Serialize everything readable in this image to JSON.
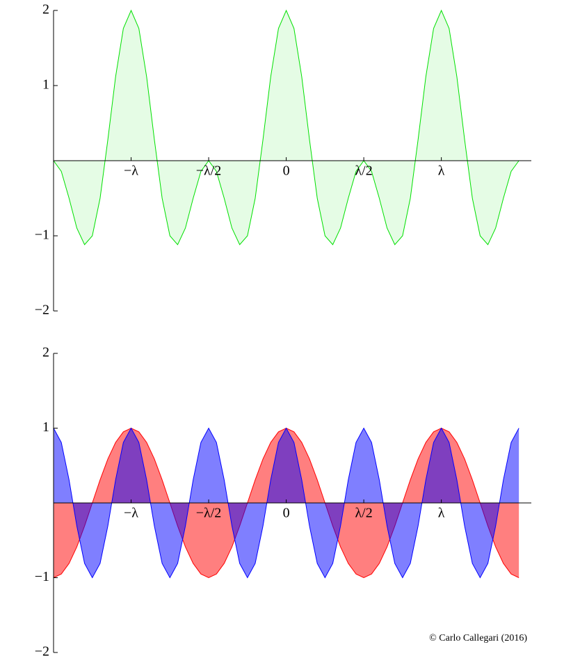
{
  "chart_data": [
    {
      "type": "area",
      "x": [
        -1.5,
        -1.45,
        -1.4,
        -1.35,
        -1.3,
        -1.25,
        -1.2,
        -1.15,
        -1.1,
        -1.05,
        -1,
        -0.95,
        -0.9,
        -0.85,
        -0.8,
        -0.75,
        -0.7,
        -0.65,
        -0.6,
        -0.55,
        -0.5,
        -0.45,
        -0.4,
        -0.35,
        -0.3,
        -0.25,
        -0.2,
        -0.15,
        -0.1,
        -0.05,
        0,
        0.05,
        0.1,
        0.15,
        0.2,
        0.25,
        0.3,
        0.35,
        0.4,
        0.45,
        0.5,
        0.55,
        0.6,
        0.65,
        0.7,
        0.75,
        0.8,
        0.85,
        0.9,
        0.95,
        1,
        1.05,
        1.1,
        1.15,
        1.2,
        1.25,
        1.3,
        1.35,
        1.4,
        1.45,
        1.5
      ],
      "series": [
        {
          "color": "#00e000",
          "fill_opacity": 0.1,
          "values": [
            0,
            -0.142,
            -0.5,
            -0.897,
            -1.118,
            -1,
            -0.5,
            0.279,
            1.118,
            1.76,
            2,
            1.76,
            1.118,
            0.279,
            -0.5,
            -1,
            -1.118,
            -0.897,
            -0.5,
            -0.142,
            0,
            -0.142,
            -0.5,
            -0.897,
            -1.118,
            -1,
            -0.5,
            0.279,
            1.118,
            1.76,
            2,
            1.76,
            1.118,
            0.279,
            -0.5,
            -1,
            -1.118,
            -0.897,
            -0.5,
            -0.142,
            0,
            -0.142,
            -0.5,
            -0.897,
            -1.118,
            -1,
            -0.5,
            0.279,
            1.118,
            1.76,
            2,
            1.76,
            1.118,
            0.279,
            -0.5,
            -1,
            -1.118,
            -0.897,
            -0.5,
            -0.142,
            0
          ]
        }
      ],
      "xlim": [
        -1.5,
        1.58
      ],
      "xticks": [
        {
          "value": -1,
          "label": "−λ"
        },
        {
          "value": -0.5,
          "label": "−λ/2"
        },
        0,
        {
          "value": 0.5,
          "label": "λ/2"
        },
        {
          "value": 1,
          "label": "λ"
        }
      ],
      "ylim": [
        -2,
        2
      ],
      "yticks": [
        {
          "value": -2,
          "label": "−2"
        },
        {
          "value": -1,
          "label": "−1"
        },
        1,
        2
      ]
    },
    {
      "type": "area",
      "x": [
        -1.5,
        -1.45,
        -1.4,
        -1.35,
        -1.3,
        -1.25,
        -1.2,
        -1.15,
        -1.1,
        -1.05,
        -1,
        -0.95,
        -0.9,
        -0.85,
        -0.8,
        -0.75,
        -0.7,
        -0.65,
        -0.6,
        -0.55,
        -0.5,
        -0.45,
        -0.4,
        -0.35,
        -0.3,
        -0.25,
        -0.2,
        -0.15,
        -0.1,
        -0.05,
        0,
        0.05,
        0.1,
        0.15,
        0.2,
        0.25,
        0.3,
        0.35,
        0.4,
        0.45,
        0.5,
        0.55,
        0.6,
        0.65,
        0.7,
        0.75,
        0.8,
        0.85,
        0.9,
        0.95,
        1,
        1.05,
        1.1,
        1.15,
        1.2,
        1.25,
        1.3,
        1.35,
        1.4,
        1.45,
        1.5
      ],
      "series": [
        {
          "color": "#ff0000",
          "fill_opacity": 0.5,
          "values": [
            -1,
            -0.951,
            -0.809,
            -0.588,
            -0.309,
            0,
            0.309,
            0.588,
            0.809,
            0.951,
            1,
            0.951,
            0.809,
            0.588,
            0.309,
            0,
            -0.309,
            -0.588,
            -0.809,
            -0.951,
            -1,
            -0.951,
            -0.809,
            -0.588,
            -0.309,
            0,
            0.309,
            0.588,
            0.809,
            0.951,
            1,
            0.951,
            0.809,
            0.588,
            0.309,
            0,
            -0.309,
            -0.588,
            -0.809,
            -0.951,
            -1,
            -0.951,
            -0.809,
            -0.588,
            -0.309,
            0,
            0.309,
            0.588,
            0.809,
            0.951,
            1,
            0.951,
            0.809,
            0.588,
            0.309,
            0,
            -0.309,
            -0.588,
            -0.809,
            -0.951,
            -1
          ]
        },
        {
          "color": "#0000ff",
          "fill_opacity": 0.5,
          "values": [
            1,
            0.809,
            0.309,
            -0.309,
            -0.809,
            -1,
            -0.809,
            -0.309,
            0.309,
            0.809,
            1,
            0.809,
            0.309,
            -0.309,
            -0.809,
            -1,
            -0.809,
            -0.309,
            0.309,
            0.809,
            1,
            0.809,
            0.309,
            -0.309,
            -0.809,
            -1,
            -0.809,
            -0.309,
            0.309,
            0.809,
            1,
            0.809,
            0.309,
            -0.309,
            -0.809,
            -1,
            -0.809,
            -0.309,
            0.309,
            0.809,
            1,
            0.809,
            0.309,
            -0.309,
            -0.809,
            -1,
            -0.809,
            -0.309,
            0.309,
            0.809,
            1,
            0.809,
            0.309,
            -0.309,
            -0.809,
            -1,
            -0.809,
            -0.309,
            0.309,
            0.809,
            1
          ]
        }
      ],
      "xlim": [
        -1.5,
        1.58
      ],
      "xticks": [
        {
          "value": -1,
          "label": "−λ"
        },
        {
          "value": -0.5,
          "label": "−λ/2"
        },
        0,
        {
          "value": 0.5,
          "label": "λ/2"
        },
        {
          "value": 1,
          "label": "λ"
        }
      ],
      "ylim": [
        -2,
        2
      ],
      "yticks": [
        {
          "value": -2,
          "label": "−2"
        },
        {
          "value": -1,
          "label": "−1"
        },
        1,
        2
      ],
      "annotation": "© Carlo Callegari (2016)"
    }
  ]
}
